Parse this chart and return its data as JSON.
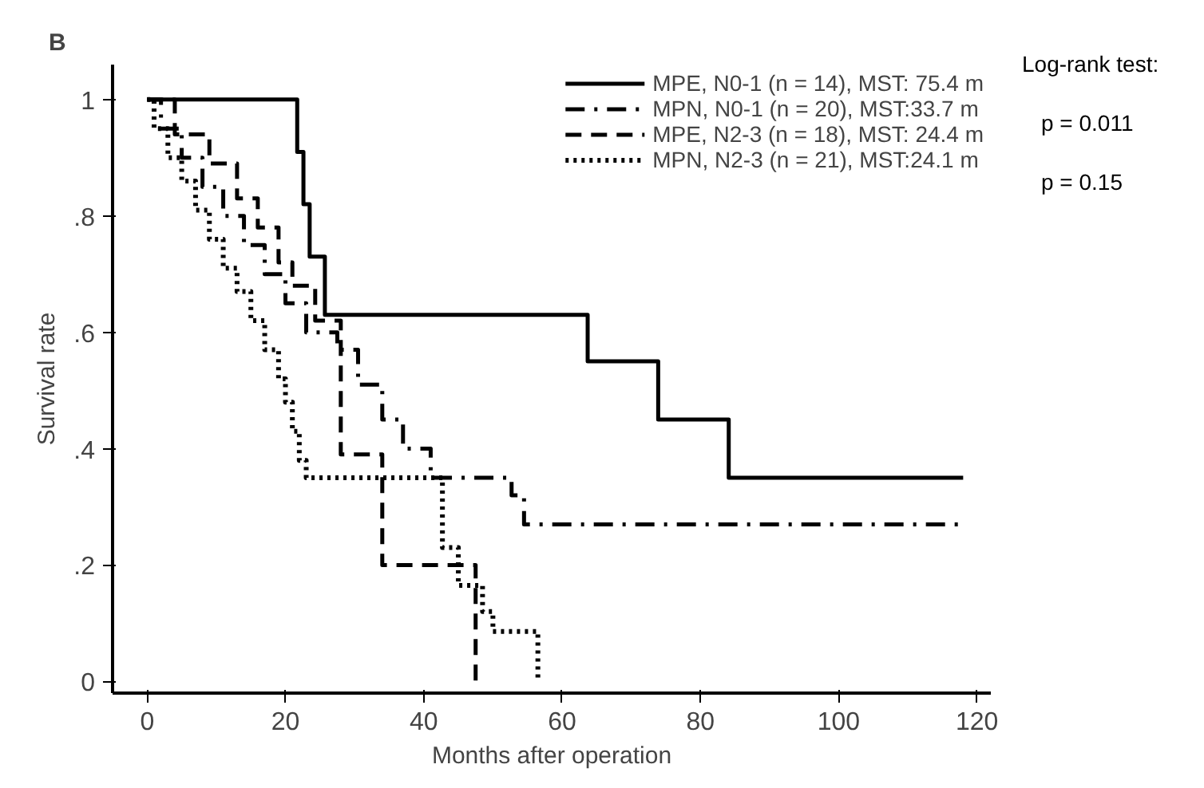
{
  "chart_data": {
    "type": "step",
    "title": "B",
    "xlabel": "Months after operation",
    "ylabel": "Survival rate",
    "xlim": [
      -5,
      122
    ],
    "ylim": [
      -0.02,
      1.06
    ],
    "xticks": [
      0,
      20,
      40,
      60,
      80,
      100,
      120
    ],
    "yticks": [
      0,
      {
        "value": 0.2,
        "label": ".2"
      },
      {
        "value": 0.4,
        "label": ".4"
      },
      {
        "value": 0.6,
        "label": ".6"
      },
      {
        "value": 0.8,
        "label": ".8"
      },
      1
    ],
    "grid": false,
    "legend": "top right",
    "series": [
      {
        "name": "MPE, N0-1 (n = 14), MST: 75.4 m",
        "color": "#000000",
        "line_style": "solid",
        "x": [
          0,
          21.7,
          22.6,
          23.5,
          25.7,
          63.7,
          73.9,
          84.1,
          118
        ],
        "values": [
          1,
          0.91,
          0.82,
          0.73,
          0.63,
          0.55,
          0.45,
          0.35,
          0.35
        ]
      },
      {
        "name": "MPN, N0-1 (n = 20), MST:33.7 m",
        "color": "#000000",
        "line_style": "dashdot",
        "x": [
          0,
          2,
          5,
          8,
          11,
          14,
          17,
          20,
          23,
          27.5,
          30.5,
          34,
          37,
          41,
          52.7,
          54.5,
          118
        ],
        "values": [
          1,
          0.95,
          0.9,
          0.85,
          0.8,
          0.75,
          0.7,
          0.65,
          0.6,
          0.57,
          0.51,
          0.45,
          0.4,
          0.35,
          0.32,
          0.27,
          0.27
        ]
      },
      {
        "name": "MPE, N2-3 (n = 18), MST: 24.4 m",
        "color": "#000000",
        "line_style": "dashed",
        "x": [
          0,
          4,
          9,
          13,
          16,
          19,
          21,
          24.3,
          28,
          34,
          47.5
        ],
        "values": [
          1,
          0.94,
          0.89,
          0.83,
          0.78,
          0.72,
          0.68,
          0.62,
          0.39,
          0.2,
          0
        ]
      },
      {
        "name": "MPN, N2-3 (n = 21), MST:24.1 m",
        "color": "#000000",
        "line_style": "dotted",
        "x": [
          0,
          1,
          3,
          5,
          7,
          9,
          11,
          13,
          15,
          17,
          19,
          20,
          21,
          22,
          23,
          42.7,
          45,
          48.5,
          50,
          56.5
        ],
        "values": [
          1,
          0.95,
          0.9,
          0.86,
          0.81,
          0.76,
          0.71,
          0.67,
          0.62,
          0.57,
          0.52,
          0.48,
          0.43,
          0.38,
          0.35,
          0.23,
          0.165,
          0.12,
          0.086,
          0
        ]
      }
    ],
    "annotations": [
      "Log-rank test:",
      "p = 0.011",
      "p = 0.15"
    ]
  }
}
